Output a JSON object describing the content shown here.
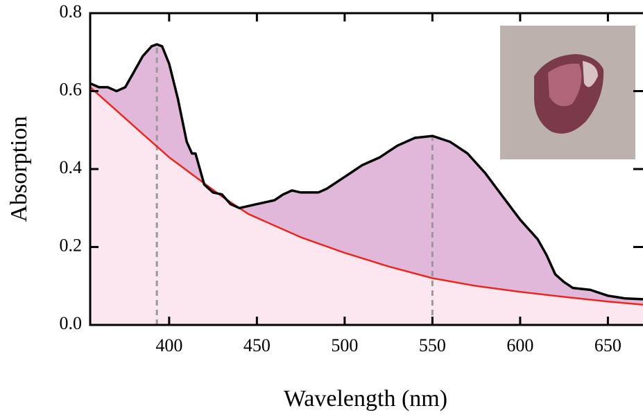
{
  "chart_data": {
    "type": "area",
    "xlabel": "Wavelength (nm)",
    "ylabel": "Absorption",
    "xlim": [
      355,
      670
    ],
    "ylim": [
      0,
      0.8
    ],
    "xticks": [
      400,
      450,
      500,
      550,
      600,
      650
    ],
    "yticks": [
      {
        "value": 0,
        "label": "0.0"
      },
      0.2,
      0.4,
      0.6,
      0.8
    ],
    "series": [
      {
        "color": "#000000",
        "fill": "#e2b8da",
        "x": [
          355,
          360,
          365,
          370,
          375,
          380,
          385,
          390,
          393,
          396,
          400,
          405,
          410,
          413,
          415,
          420,
          425,
          430,
          435,
          440,
          450,
          460,
          465,
          470,
          475,
          485,
          490,
          500,
          510,
          520,
          530,
          540,
          550,
          560,
          570,
          580,
          590,
          600,
          610,
          615,
          620,
          625,
          630,
          640,
          650,
          660,
          670
        ],
        "values": [
          0.62,
          0.61,
          0.61,
          0.6,
          0.61,
          0.65,
          0.69,
          0.715,
          0.72,
          0.715,
          0.67,
          0.58,
          0.47,
          0.44,
          0.44,
          0.36,
          0.34,
          0.335,
          0.31,
          0.3,
          0.31,
          0.32,
          0.335,
          0.345,
          0.34,
          0.34,
          0.35,
          0.38,
          0.41,
          0.43,
          0.46,
          0.48,
          0.485,
          0.47,
          0.44,
          0.39,
          0.33,
          0.27,
          0.22,
          0.18,
          0.13,
          0.11,
          0.095,
          0.09,
          0.075,
          0.068,
          0.066
        ]
      },
      {
        "color": "#e8281e",
        "fill": "#fce6f0",
        "x": [
          355,
          370,
          385,
          400,
          415,
          430,
          445,
          460,
          475,
          500,
          525,
          550,
          575,
          600,
          625,
          650,
          670
        ],
        "values": [
          0.61,
          0.55,
          0.49,
          0.43,
          0.38,
          0.33,
          0.285,
          0.255,
          0.225,
          0.185,
          0.15,
          0.12,
          0.1,
          0.085,
          0.072,
          0.06,
          0.052
        ]
      }
    ],
    "markers": [
      {
        "x": 393,
        "y": 0.72
      },
      {
        "x": 550,
        "y": 0.485
      }
    ]
  }
}
